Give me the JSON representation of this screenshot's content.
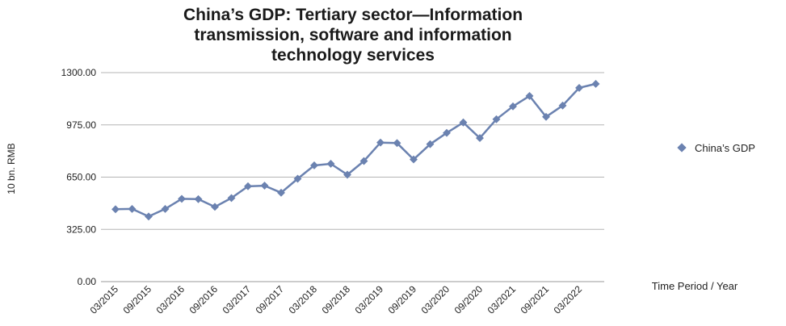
{
  "chart_data": {
    "type": "line",
    "title_lines": [
      "China’s GDP: Tertiary sector—Information",
      "transmission, software and information",
      "technology services"
    ],
    "ylabel": "10 bn. RMB",
    "xlabel": "Time Period / Year",
    "ylim": [
      0,
      1300
    ],
    "yticks": [
      "0.00",
      "325.00",
      "650.00",
      "975.00",
      "1300.00"
    ],
    "ytick_values": [
      0,
      325,
      650,
      975,
      1300
    ],
    "grid": true,
    "legend_position": "right",
    "x_tick_labels": [
      "03/2015",
      "09/2015",
      "03/2016",
      "09/2016",
      "03/2017",
      "09/2017",
      "03/2018",
      "09/2018",
      "03/2019",
      "09/2019",
      "03/2020",
      "09/2020",
      "03/2021",
      "09/2021",
      "03/2022"
    ],
    "x": [
      "03/2015",
      "06/2015",
      "09/2015",
      "12/2015",
      "03/2016",
      "06/2016",
      "09/2016",
      "12/2016",
      "03/2017",
      "06/2017",
      "09/2017",
      "12/2017",
      "03/2018",
      "06/2018",
      "09/2018",
      "12/2018",
      "03/2019",
      "06/2019",
      "09/2019",
      "12/2019",
      "03/2020",
      "06/2020",
      "09/2020",
      "12/2020",
      "03/2021",
      "06/2021",
      "09/2021",
      "12/2021",
      "03/2022",
      "06/2022"
    ],
    "series": [
      {
        "name": "China’s GDP",
        "color": "#6b82b0",
        "values": [
          450,
          452,
          405,
          452,
          515,
          513,
          465,
          520,
          593,
          597,
          553,
          640,
          723,
          733,
          665,
          750,
          865,
          862,
          760,
          855,
          925,
          990,
          893,
          1010,
          1090,
          1155,
          1025,
          1095,
          1205,
          1230
        ]
      }
    ]
  }
}
